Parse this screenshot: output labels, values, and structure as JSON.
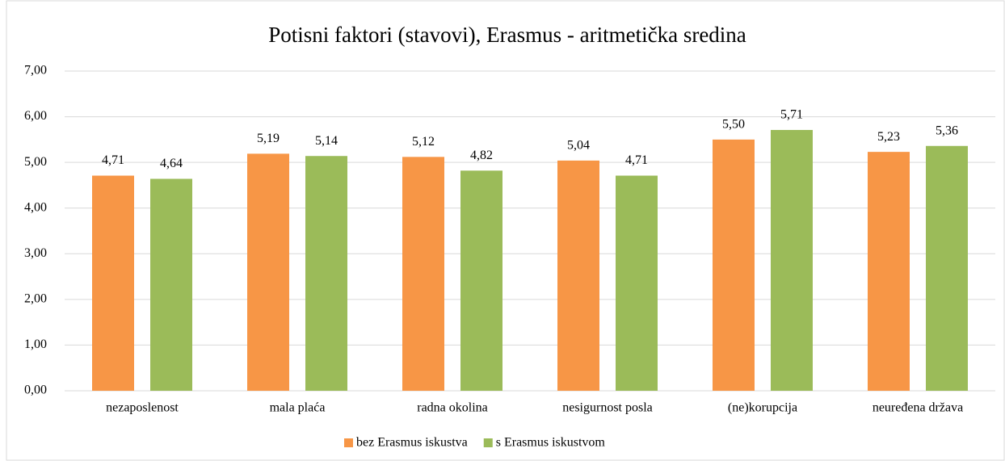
{
  "chart_data": {
    "type": "bar",
    "title": "Potisni faktori (stavovi), Erasmus - aritmetička sredina",
    "categories": [
      "nezaposlenost",
      "mala plaća",
      "radna okolina",
      "nesigurnost posla",
      "(ne)korupcija",
      "neuređena država"
    ],
    "series": [
      {
        "name": "bez Erasmus iskustva",
        "color": "#f79646",
        "values": [
          4.71,
          5.19,
          5.12,
          5.04,
          5.5,
          5.23
        ],
        "value_labels": [
          "4,71",
          "5,19",
          "5,12",
          "5,04",
          "5,50",
          "5,23"
        ]
      },
      {
        "name": "s Erasmus iskustvom",
        "color": "#9bbb59",
        "values": [
          4.64,
          5.14,
          4.82,
          4.71,
          5.71,
          5.36
        ],
        "value_labels": [
          "4,64",
          "5,14",
          "4,82",
          "4,71",
          "5,71",
          "5,36"
        ]
      }
    ],
    "ylim": [
      0,
      7
    ],
    "yticks": [
      {
        "value": 0,
        "label": "0,00"
      },
      {
        "value": 1,
        "label": "1,00"
      },
      {
        "value": 2,
        "label": "2,00"
      },
      {
        "value": 3,
        "label": "3,00"
      },
      {
        "value": 4,
        "label": "4,00"
      },
      {
        "value": 5,
        "label": "5,00"
      },
      {
        "value": 6,
        "label": "6,00"
      },
      {
        "value": 7,
        "label": "7,00"
      }
    ],
    "grid": true,
    "legend": "bottom"
  }
}
